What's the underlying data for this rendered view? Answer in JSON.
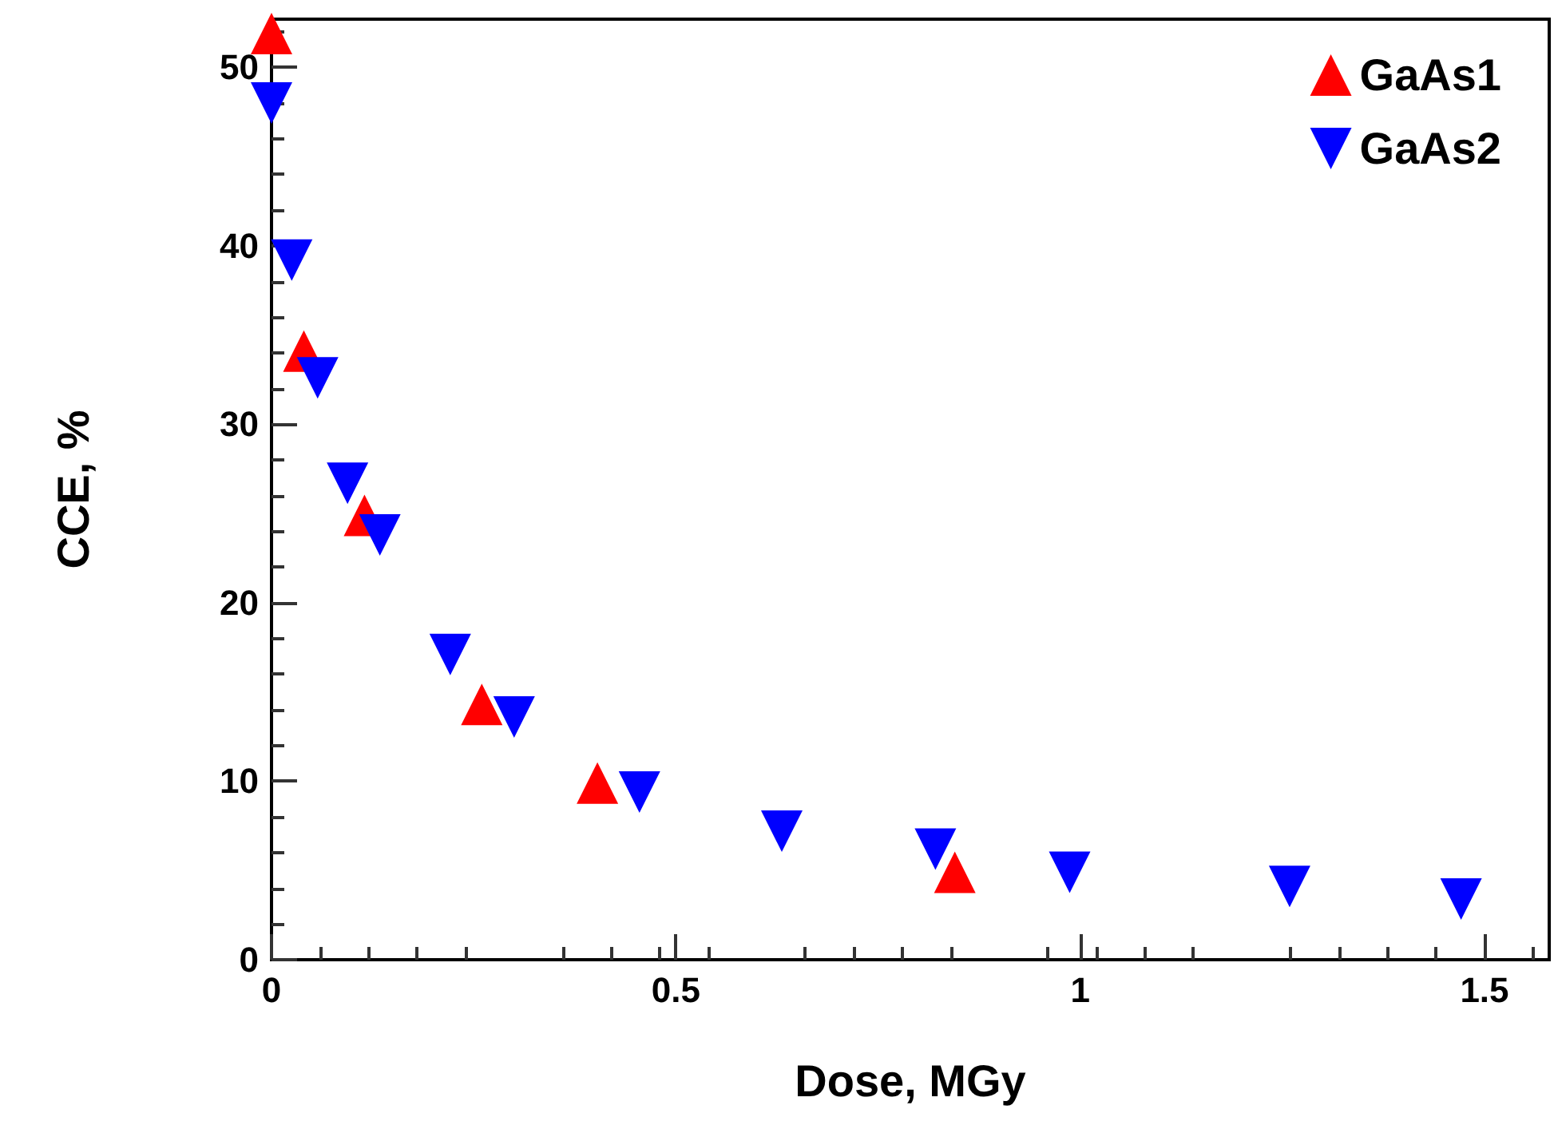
{
  "chart_data": {
    "type": "scatter",
    "xlabel": "Dose, MGy",
    "ylabel": "CCE, %",
    "xlim": [
      0,
      1.58
    ],
    "xticks": [
      0,
      0.5,
      1,
      1.5
    ],
    "ylim": [
      0,
      52.7
    ],
    "yticks": [
      0,
      10,
      20,
      30,
      40,
      50
    ],
    "grid": false,
    "legend": "top right",
    "series": [
      {
        "name": "GaAs1",
        "color": "#ff0000",
        "marker": "triangle",
        "x": [
          0.0,
          0.04,
          0.115,
          0.26,
          0.403,
          0.845
        ],
        "values": [
          51.9,
          34.1,
          24.9,
          14.3,
          9.9,
          4.9
        ]
      },
      {
        "name": "GaAs2",
        "color": "#0000ff",
        "marker": "triangle-down",
        "x": [
          0.0,
          0.025,
          0.057,
          0.094,
          0.134,
          0.221,
          0.3,
          0.455,
          0.631,
          0.821,
          0.987,
          1.259,
          1.471
        ],
        "values": [
          48.0,
          39.2,
          32.6,
          26.7,
          23.8,
          17.1,
          13.6,
          9.4,
          7.2,
          6.2,
          4.9,
          4.1,
          3.4
        ]
      }
    ]
  }
}
